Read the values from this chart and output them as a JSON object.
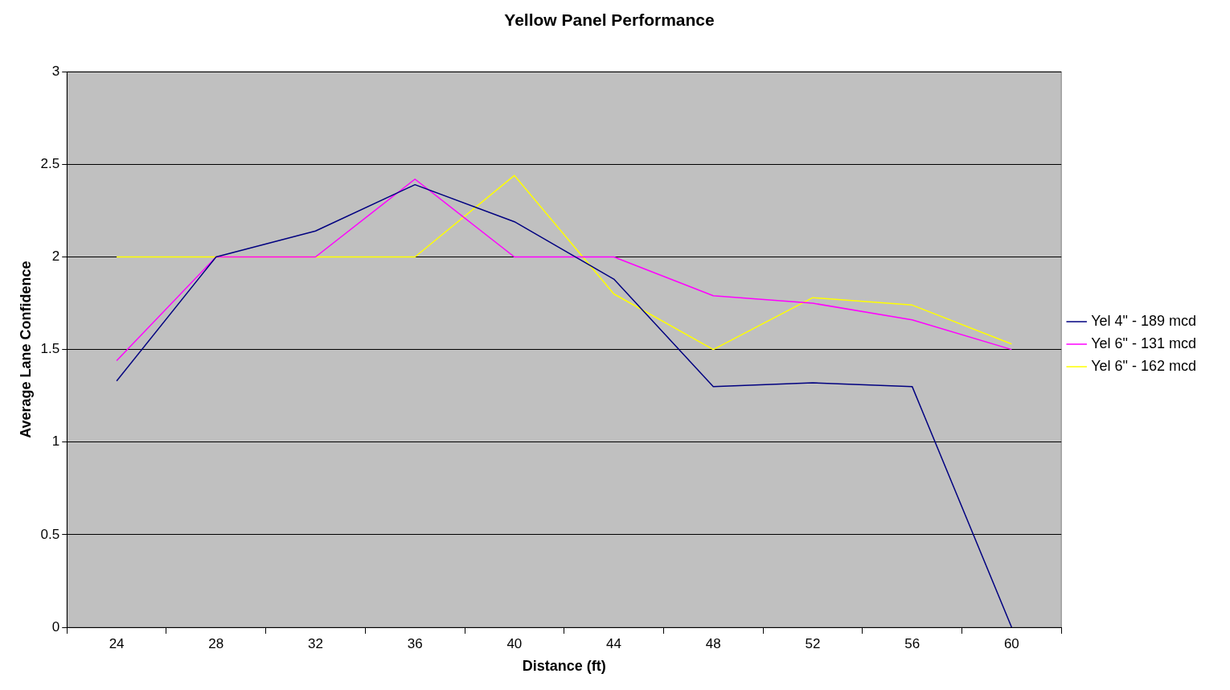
{
  "chart_data": {
    "type": "line",
    "title": "Yellow Panel Performance",
    "xlabel": "Distance (ft)",
    "ylabel": "Average Lane Confidence",
    "categories": [
      "24",
      "28",
      "32",
      "36",
      "40",
      "44",
      "48",
      "52",
      "56",
      "60"
    ],
    "series": [
      {
        "name": "Yel 4\" - 189 mcd",
        "color": "#000080",
        "values": [
          1.33,
          2,
          2.14,
          2.39,
          2.19,
          1.88,
          1.3,
          1.32,
          1.3,
          0
        ]
      },
      {
        "name": "Yel 6\" - 131 mcd",
        "color": "#ff00ff",
        "values": [
          1.44,
          2,
          2,
          2.42,
          2,
          2,
          1.79,
          1.75,
          1.66,
          1.5
        ]
      },
      {
        "name": "Yel 6\" - 162 mcd",
        "color": "#ffff00",
        "values": [
          2,
          2,
          2,
          2,
          2.44,
          1.8,
          1.5,
          1.78,
          1.74,
          1.53
        ]
      }
    ],
    "ylim": [
      0,
      3
    ],
    "yticks": [
      0,
      0.5,
      1,
      1.5,
      2,
      2.5,
      3
    ],
    "grid": "y",
    "legend": "right",
    "marker": "none",
    "line_style": "solid"
  }
}
